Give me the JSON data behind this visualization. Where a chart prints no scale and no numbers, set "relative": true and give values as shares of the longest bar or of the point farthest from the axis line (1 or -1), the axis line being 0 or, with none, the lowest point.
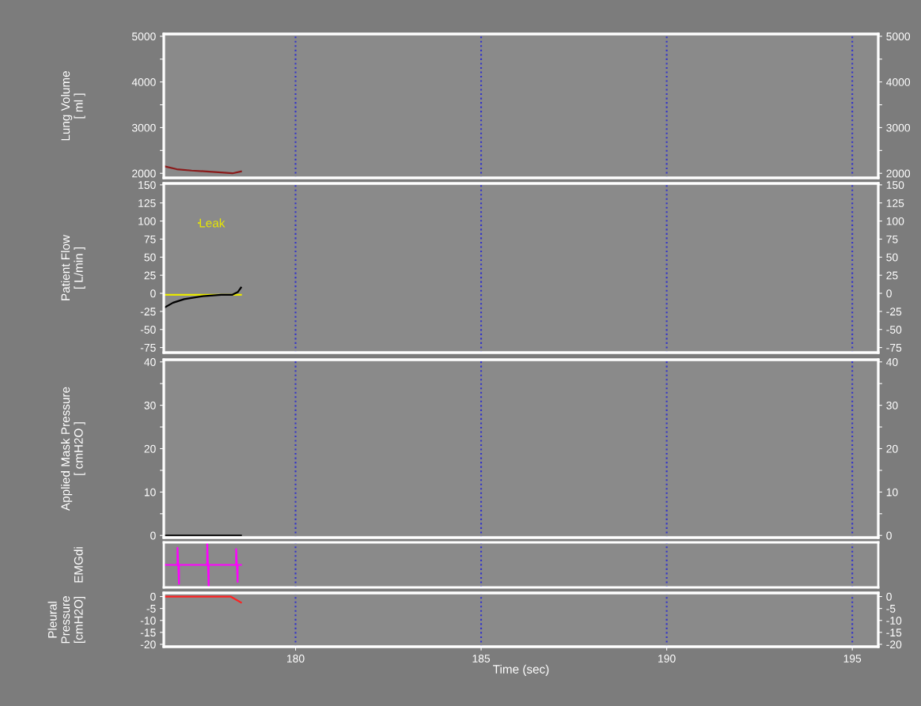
{
  "chart_data": [
    {
      "type": "line",
      "ylabel": "Lung Volume\n[ ml ]",
      "xlim": [
        176.45,
        195.7
      ],
      "ylim": [
        1900,
        5050
      ],
      "yticks": [
        2000,
        {
          "value": 2500,
          "label": null
        },
        3000,
        {
          "value": 3500,
          "label": null
        },
        4000,
        {
          "value": 4500,
          "label": null
        },
        5000
      ],
      "y2lim": [
        1900,
        5050
      ],
      "y2ticks": [
        2000,
        {
          "value": 2500,
          "label": null
        },
        3000,
        {
          "value": 3500,
          "label": null
        },
        4000,
        {
          "value": 4500,
          "label": null
        },
        5000
      ],
      "tick_labels": "y",
      "grid": false,
      "legend": false,
      "series": [
        {
          "color": "#8b1a1a",
          "x": [
            176.49,
            176.8,
            177.2,
            177.6,
            178.0,
            178.3,
            178.53
          ],
          "values": [
            2150,
            2090,
            2060,
            2040,
            2020,
            2000,
            2040
          ]
        }
      ],
      "ref_lines": [
        {
          "axis": "x",
          "value": 180,
          "color": "#3333cc",
          "line_style": "dotted"
        },
        {
          "axis": "x",
          "value": 185,
          "color": "#3333cc",
          "line_style": "dotted"
        },
        {
          "axis": "x",
          "value": 190,
          "color": "#3333cc",
          "line_style": "dotted"
        },
        {
          "axis": "x",
          "value": 195,
          "color": "#3333cc",
          "line_style": "dotted"
        }
      ]
    },
    {
      "type": "line",
      "ylabel": "Patient Flow\n[ L/min ]",
      "xlim": [
        176.45,
        195.7
      ],
      "ylim": [
        -82,
        152
      ],
      "yticks": [
        -75,
        -50,
        -25,
        0,
        25,
        50,
        75,
        100,
        125,
        150
      ],
      "y2lim": [
        -82,
        152
      ],
      "y2ticks": [
        -75,
        -50,
        -25,
        0,
        25,
        50,
        75,
        100,
        125,
        150
      ],
      "tick_labels": "y",
      "grid": false,
      "legend": "top left",
      "series": [
        {
          "name": "Leak",
          "color": "#e8e800",
          "x": [
            176.49,
            178.53
          ],
          "values": [
            -2,
            -2
          ]
        },
        {
          "color": "#000000",
          "x": [
            176.49,
            176.7,
            177.0,
            177.5,
            178.0,
            178.3,
            178.45,
            178.53
          ],
          "values": [
            -19,
            -13,
            -8,
            -4,
            -2,
            -2,
            2,
            8
          ]
        }
      ],
      "ref_lines": [
        {
          "axis": "x",
          "value": 180,
          "color": "#3333cc",
          "line_style": "dotted"
        },
        {
          "axis": "x",
          "value": 185,
          "color": "#3333cc",
          "line_style": "dotted"
        },
        {
          "axis": "x",
          "value": 190,
          "color": "#3333cc",
          "line_style": "dotted"
        },
        {
          "axis": "x",
          "value": 195,
          "color": "#3333cc",
          "line_style": "dotted"
        }
      ]
    },
    {
      "type": "line",
      "ylabel": "Applied Mask Pressure\n[ cmH2O ]",
      "xlim": [
        176.45,
        195.7
      ],
      "ylim": [
        -0.5,
        40.5
      ],
      "yticks": [
        0,
        {
          "value": 5,
          "label": null
        },
        10,
        {
          "value": 15,
          "label": null
        },
        20,
        {
          "value": 25,
          "label": null
        },
        30,
        {
          "value": 35,
          "label": null
        },
        40
      ],
      "y2lim": [
        -0.5,
        40.5
      ],
      "y2ticks": [
        0,
        {
          "value": 5,
          "label": null
        },
        10,
        {
          "value": 15,
          "label": null
        },
        20,
        {
          "value": 25,
          "label": null
        },
        30,
        {
          "value": 35,
          "label": null
        },
        40
      ],
      "tick_labels": "y",
      "grid": false,
      "legend": false,
      "series": [
        {
          "color": "#000000",
          "x": [
            176.49,
            178.53
          ],
          "values": [
            0,
            0
          ]
        }
      ],
      "ref_lines": [
        {
          "axis": "x",
          "value": 180,
          "color": "#3333cc",
          "line_style": "dotted"
        },
        {
          "axis": "x",
          "value": 185,
          "color": "#3333cc",
          "line_style": "dotted"
        },
        {
          "axis": "x",
          "value": 190,
          "color": "#3333cc",
          "line_style": "dotted"
        },
        {
          "axis": "x",
          "value": 195,
          "color": "#3333cc",
          "line_style": "dotted"
        }
      ]
    },
    {
      "type": "line",
      "ylabel": "EMGdi",
      "xlim": [
        176.45,
        195.7
      ],
      "relative": true,
      "tick_labels": false,
      "grid": false,
      "legend": false,
      "series": [
        {
          "color": "#ff00ff",
          "x": [
            176.49,
            176.82,
            176.82,
            176.86,
            176.86,
            176.9,
            177.62,
            177.62,
            177.66,
            177.66,
            177.7,
            178.4,
            178.4,
            178.44,
            178.44,
            178.53
          ],
          "values": [
            0.5,
            0.5,
            0.88,
            0.08,
            0.5,
            0.5,
            0.5,
            1.0,
            0.0,
            0.5,
            0.5,
            0.5,
            0.85,
            0.12,
            0.5,
            0.5
          ]
        }
      ],
      "ref_lines": [
        {
          "axis": "x",
          "value": 180,
          "color": "#3333cc",
          "line_style": "dotted"
        },
        {
          "axis": "x",
          "value": 185,
          "color": "#3333cc",
          "line_style": "dotted"
        },
        {
          "axis": "x",
          "value": 190,
          "color": "#3333cc",
          "line_style": "dotted"
        },
        {
          "axis": "x",
          "value": 195,
          "color": "#3333cc",
          "line_style": "dotted"
        }
      ]
    },
    {
      "type": "line",
      "ylabel": "Pleural\nPressure\n[cmH2O]",
      "xlabel": "Time (sec)",
      "xlim": [
        176.45,
        195.7
      ],
      "xticks": [
        180,
        185,
        190,
        195
      ],
      "ylim": [
        -21,
        1.5
      ],
      "yticks": [
        -20,
        -15,
        -10,
        -5,
        0
      ],
      "y2lim": [
        -21,
        1.5
      ],
      "y2ticks": [
        -20,
        -15,
        -10,
        -5,
        0
      ],
      "grid": false,
      "legend": false,
      "series": [
        {
          "color": "#ff2020",
          "x": [
            176.49,
            178.25,
            178.53
          ],
          "values": [
            0,
            0,
            -2.5
          ]
        }
      ],
      "ref_lines": [
        {
          "axis": "x",
          "value": 180,
          "color": "#3333cc",
          "line_style": "dotted"
        },
        {
          "axis": "x",
          "value": 185,
          "color": "#3333cc",
          "line_style": "dotted"
        },
        {
          "axis": "x",
          "value": 190,
          "color": "#3333cc",
          "line_style": "dotted"
        },
        {
          "axis": "x",
          "value": 195,
          "color": "#3333cc",
          "line_style": "dotted"
        }
      ]
    }
  ]
}
